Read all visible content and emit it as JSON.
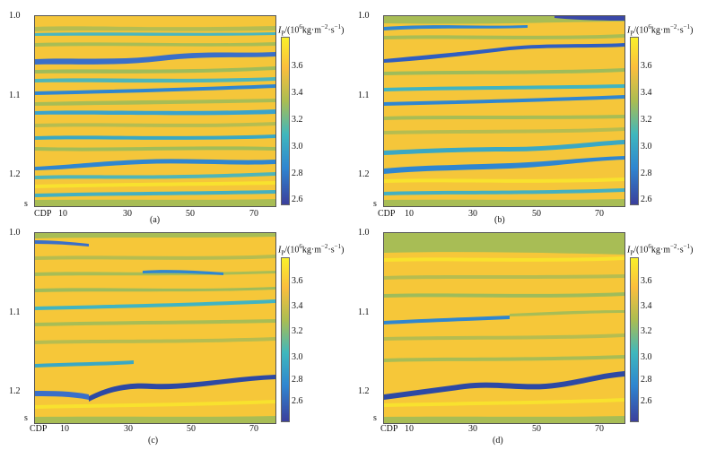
{
  "figure": {
    "panels": [
      {
        "label": "(a)",
        "colorbar_title": {
          "main": "I",
          "sub": "P",
          "rest": "/(10",
          "exp1": "6",
          "unit": "kg·m",
          "exp2": "−2",
          "unit2": "·s",
          "exp3": "−1",
          "close": ")"
        },
        "colorbar_ticks": [
          "3.6",
          "3.4",
          "3.2",
          "3.0",
          "2.8",
          "2.6"
        ],
        "y_ticks": [
          "1.0",
          "1.1",
          "1.2"
        ],
        "y_unit": "s",
        "x_prefix": "CDP",
        "x_ticks": [
          "10",
          "30",
          "50",
          "70"
        ]
      },
      {
        "label": "(b)",
        "colorbar_title": {
          "main": "I",
          "sub": "P",
          "rest": "/(10",
          "exp1": "6",
          "unit": "kg·m",
          "exp2": "−2",
          "unit2": "·s",
          "exp3": "−1",
          "close": ")"
        },
        "colorbar_ticks": [
          "3.6",
          "3.4",
          "3.2",
          "3.0",
          "2.8",
          "2.6"
        ],
        "y_ticks": [
          "1.0",
          "1.1",
          "1.2"
        ],
        "y_unit": "s",
        "x_prefix": "CDP",
        "x_ticks": [
          "10",
          "30",
          "50",
          "70"
        ]
      },
      {
        "label": "(c)",
        "colorbar_title": {
          "main": "I",
          "sub": "P",
          "rest": "/(10",
          "exp1": "6",
          "unit": "kg·m",
          "exp2": "−2",
          "unit2": "·s",
          "exp3": "−1",
          "close": ")"
        },
        "colorbar_ticks": [
          "3.6",
          "3.4",
          "3.2",
          "3.0",
          "2.8",
          "2.6"
        ],
        "y_ticks": [
          "1.0",
          "1.1",
          "1.2"
        ],
        "y_unit": "s",
        "x_prefix": "CDP",
        "x_ticks": [
          "10",
          "30",
          "50",
          "70"
        ]
      },
      {
        "label": "(d)",
        "colorbar_title": {
          "main": "I",
          "sub": "P",
          "rest": "/(10",
          "exp1": "6",
          "unit": "kg·m",
          "exp2": "−2",
          "unit2": "·s",
          "exp3": "−1",
          "close": ")"
        },
        "colorbar_ticks": [
          "3.6",
          "3.4",
          "3.2",
          "3.0",
          "2.8",
          "2.6"
        ],
        "y_ticks": [
          "1.0",
          "1.1",
          "1.2"
        ],
        "y_unit": "s",
        "x_prefix": "CDP",
        "x_ticks": [
          "10",
          "30",
          "50",
          "70"
        ]
      }
    ]
  },
  "colors": {
    "yellow": "#f7c938",
    "bright_yellow": "#f8e22e",
    "green": "#a8bd55",
    "cyan": "#40b4c2",
    "blue": "#2f86d0",
    "dark_blue": "#3a48a8"
  }
}
